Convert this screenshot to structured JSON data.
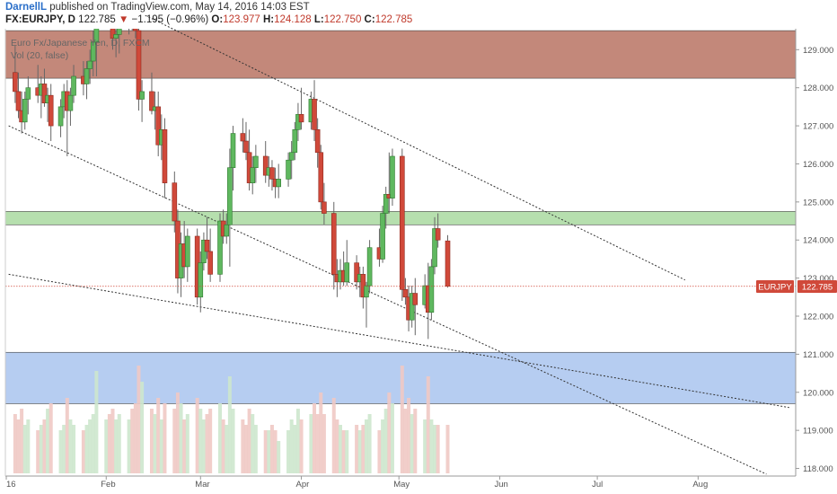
{
  "header": {
    "author": "DarnellL",
    "published_text": "published on TradingView.com, May 14, 2016 14:03 EST",
    "symbol": "FX:EURJPY, D",
    "last": "122.785",
    "change_arrow": "▼",
    "change": "−1.195 (−0.96%)",
    "o_label": "O:",
    "o_value": "123.977",
    "h_label": "H:",
    "h_value": "124.128",
    "l_label": "L:",
    "l_value": "122.750",
    "c_label": "C:",
    "c_value": "122.785"
  },
  "legend": {
    "title": "Euro Fx/Japanese Yen, D, FXCM",
    "indicator": "Vol (20, false)"
  },
  "price_tag": {
    "symbol": "EURJPY",
    "value": "122.785"
  },
  "colors": {
    "up": "#5fb85f",
    "down": "#d0493a",
    "resistance_zone": "#b87363",
    "support_mid_zone": "#a9d9a0",
    "support_zone": "#a9c4ee",
    "last_price_line": "#d0493a",
    "trendline": "#333333"
  },
  "chart_data": {
    "type": "candlestick",
    "y_axis_ticks": [
      "129.000",
      "128.000",
      "127.000",
      "126.000",
      "125.000",
      "124.000",
      "123.000",
      "122.000",
      "121.000",
      "120.000",
      "119.000",
      "118.000"
    ],
    "x_axis_ticks": [
      {
        "label": "16",
        "date": "2016-01-01"
      },
      {
        "label": "Feb",
        "date": "2016-02-01"
      },
      {
        "label": "Mar",
        "date": "2016-03-01"
      },
      {
        "label": "Apr",
        "date": "2016-04-01"
      },
      {
        "label": "May",
        "date": "2016-05-01"
      },
      {
        "label": "Jun",
        "date": "2016-06-01"
      },
      {
        "label": "Jul",
        "date": "2016-07-01"
      },
      {
        "label": "Aug",
        "date": "2016-08-01"
      }
    ],
    "ylim": [
      117.8,
      129.55
    ],
    "xlim": [
      "2016-01-01",
      "2016-08-31"
    ],
    "last_price": 122.785,
    "zones": [
      {
        "from": 128.25,
        "to": 129.5,
        "color": "resistance_zone"
      },
      {
        "from": 124.4,
        "to": 124.75,
        "color": "support_mid_zone"
      },
      {
        "from": 119.7,
        "to": 121.05,
        "color": "support_zone"
      }
    ],
    "trendlines": [
      {
        "from": [
          "2016-01-02",
          127.0
        ],
        "to": [
          "2016-08-22",
          117.85
        ]
      },
      {
        "from": [
          "2016-01-02",
          123.1
        ],
        "to": [
          "2016-08-29",
          119.6
        ]
      },
      {
        "from": [
          "2016-02-13",
          129.9
        ],
        "to": [
          "2016-07-28",
          122.95
        ]
      }
    ],
    "volume_ylim": [
      0,
      1
    ],
    "candles": [
      [
        "2016-01-04",
        128.4,
        129.1,
        127.6,
        127.9,
        0.55
      ],
      [
        "2016-01-05",
        127.9,
        128.4,
        127.2,
        127.4,
        0.5
      ],
      [
        "2016-01-06",
        127.4,
        127.9,
        126.8,
        127.1,
        0.6
      ],
      [
        "2016-01-07",
        127.1,
        127.9,
        126.9,
        127.7,
        0.45
      ],
      [
        "2016-01-08",
        127.7,
        128.3,
        127.3,
        128.0,
        0.5
      ],
      [
        "2016-01-11",
        128.0,
        128.6,
        127.6,
        127.8,
        0.4
      ],
      [
        "2016-01-12",
        127.8,
        128.3,
        127.2,
        128.1,
        0.45
      ],
      [
        "2016-01-13",
        128.1,
        128.5,
        127.5,
        127.6,
        0.5
      ],
      [
        "2016-01-14",
        127.6,
        128.0,
        127.1,
        127.8,
        0.6
      ],
      [
        "2016-01-15",
        127.8,
        128.1,
        126.6,
        127.0,
        0.65
      ],
      [
        "2016-01-18",
        127.0,
        127.7,
        126.7,
        127.5,
        0.4
      ],
      [
        "2016-01-19",
        127.5,
        128.1,
        127.2,
        127.9,
        0.45
      ],
      [
        "2016-01-20",
        127.9,
        128.2,
        126.2,
        127.4,
        0.7
      ],
      [
        "2016-01-21",
        127.4,
        128.0,
        127.0,
        127.8,
        0.5
      ],
      [
        "2016-01-22",
        127.8,
        128.6,
        127.6,
        128.3,
        0.45
      ],
      [
        "2016-01-25",
        128.3,
        128.7,
        127.8,
        128.1,
        0.4
      ],
      [
        "2016-01-26",
        128.1,
        128.7,
        127.7,
        128.5,
        0.45
      ],
      [
        "2016-01-27",
        128.5,
        129.0,
        128.1,
        128.7,
        0.5
      ],
      [
        "2016-01-28",
        128.7,
        129.5,
        128.3,
        129.2,
        0.55
      ],
      [
        "2016-01-29",
        129.2,
        130.4,
        128.3,
        130.2,
        0.95
      ],
      [
        "2016-02-01",
        130.2,
        131.0,
        129.8,
        130.6,
        0.5
      ],
      [
        "2016-02-02",
        130.6,
        131.0,
        129.9,
        130.3,
        0.55
      ],
      [
        "2016-02-03",
        130.3,
        130.5,
        129.0,
        129.3,
        0.6
      ],
      [
        "2016-02-04",
        129.3,
        129.7,
        128.8,
        129.4,
        0.5
      ],
      [
        "2016-02-05",
        129.4,
        130.0,
        128.9,
        129.7,
        0.55
      ],
      [
        "2016-02-08",
        129.7,
        130.3,
        129.4,
        130.0,
        0.5
      ],
      [
        "2016-02-09",
        130.0,
        130.3,
        129.5,
        129.8,
        0.6
      ],
      [
        "2016-02-10",
        129.8,
        130.1,
        129.3,
        129.5,
        0.65
      ],
      [
        "2016-02-11",
        129.5,
        129.6,
        127.4,
        127.7,
        1.0
      ],
      [
        "2016-02-12",
        127.7,
        128.2,
        127.1,
        127.9,
        0.85
      ],
      [
        "2016-02-15",
        127.9,
        128.4,
        127.3,
        127.4,
        0.6
      ],
      [
        "2016-02-16",
        127.4,
        127.9,
        126.9,
        127.5,
        0.55
      ],
      [
        "2016-02-17",
        127.5,
        127.9,
        126.2,
        126.5,
        0.7
      ],
      [
        "2016-02-18",
        126.5,
        127.3,
        126.1,
        126.9,
        0.5
      ],
      [
        "2016-02-19",
        126.9,
        127.2,
        125.1,
        125.5,
        0.65
      ],
      [
        "2016-02-22",
        125.5,
        125.8,
        124.2,
        124.5,
        0.6
      ],
      [
        "2016-02-23",
        124.5,
        124.8,
        122.6,
        123.0,
        0.75
      ],
      [
        "2016-02-24",
        123.0,
        124.2,
        122.5,
        123.9,
        0.65
      ],
      [
        "2016-02-25",
        123.9,
        124.5,
        123.0,
        123.3,
        0.5
      ],
      [
        "2016-02-26",
        123.3,
        124.3,
        122.9,
        124.1,
        0.55
      ],
      [
        "2016-02-29",
        124.1,
        124.3,
        122.3,
        122.5,
        0.7
      ],
      [
        "2016-03-01",
        122.5,
        123.7,
        122.1,
        123.4,
        0.6
      ],
      [
        "2016-03-02",
        123.4,
        124.2,
        123.2,
        124.0,
        0.5
      ],
      [
        "2016-03-03",
        124.0,
        124.6,
        123.5,
        123.7,
        0.55
      ],
      [
        "2016-03-04",
        123.7,
        124.3,
        122.9,
        123.1,
        0.6
      ],
      [
        "2016-03-07",
        123.1,
        124.7,
        122.9,
        124.5,
        0.65
      ],
      [
        "2016-03-08",
        124.5,
        124.8,
        123.9,
        124.1,
        0.5
      ],
      [
        "2016-03-09",
        124.1,
        124.7,
        123.9,
        124.4,
        0.45
      ],
      [
        "2016-03-10",
        124.4,
        126.4,
        123.3,
        125.9,
        0.9
      ],
      [
        "2016-03-11",
        125.9,
        127.0,
        125.3,
        126.8,
        0.6
      ],
      [
        "2016-03-14",
        126.8,
        127.2,
        126.3,
        126.6,
        0.5
      ],
      [
        "2016-03-15",
        126.6,
        127.1,
        126.1,
        126.3,
        0.45
      ],
      [
        "2016-03-16",
        126.3,
        126.9,
        125.3,
        125.5,
        0.6
      ],
      [
        "2016-03-17",
        125.5,
        126.2,
        125.2,
        125.9,
        0.55
      ],
      [
        "2016-03-18",
        125.9,
        126.5,
        125.5,
        126.2,
        0.45
      ],
      [
        "2016-03-21",
        126.2,
        126.6,
        125.5,
        125.7,
        0.4
      ],
      [
        "2016-03-22",
        125.7,
        126.2,
        125.4,
        125.9,
        0.4
      ],
      [
        "2016-03-23",
        125.9,
        126.1,
        125.3,
        125.6,
        0.45
      ],
      [
        "2016-03-24",
        125.6,
        125.9,
        125.1,
        125.4,
        0.4
      ],
      [
        "2016-03-25",
        125.4,
        126.0,
        125.1,
        125.6,
        0.3
      ],
      [
        "2016-03-28",
        125.6,
        126.3,
        125.4,
        126.1,
        0.4
      ],
      [
        "2016-03-29",
        126.1,
        126.6,
        125.6,
        126.3,
        0.5
      ],
      [
        "2016-03-30",
        126.3,
        127.1,
        126.1,
        126.9,
        0.45
      ],
      [
        "2016-03-31",
        126.9,
        127.6,
        126.6,
        127.3,
        0.6
      ],
      [
        "2016-04-01",
        127.3,
        128.0,
        126.9,
        127.1,
        0.5
      ],
      [
        "2016-04-04",
        127.1,
        127.9,
        126.9,
        127.7,
        0.55
      ],
      [
        "2016-04-05",
        127.7,
        128.2,
        126.6,
        126.9,
        0.65
      ],
      [
        "2016-04-06",
        126.9,
        127.2,
        125.9,
        126.3,
        0.55
      ],
      [
        "2016-04-07",
        126.3,
        126.5,
        124.8,
        125.0,
        0.75
      ],
      [
        "2016-04-08",
        125.0,
        125.5,
        124.4,
        124.7,
        0.55
      ],
      [
        "2016-04-11",
        124.7,
        125.0,
        122.7,
        123.1,
        0.7
      ],
      [
        "2016-04-12",
        123.1,
        123.5,
        122.5,
        122.9,
        0.5
      ],
      [
        "2016-04-13",
        122.9,
        123.5,
        122.7,
        123.2,
        0.45
      ],
      [
        "2016-04-14",
        123.2,
        123.7,
        122.8,
        122.9,
        0.4
      ],
      [
        "2016-04-15",
        122.9,
        124.0,
        122.8,
        123.4,
        0.4
      ],
      [
        "2016-04-18",
        123.4,
        123.6,
        122.7,
        122.9,
        0.45
      ],
      [
        "2016-04-19",
        122.9,
        123.3,
        122.5,
        123.1,
        0.4
      ],
      [
        "2016-04-20",
        123.1,
        123.3,
        122.2,
        122.5,
        0.45
      ],
      [
        "2016-04-21",
        122.5,
        122.9,
        121.7,
        122.8,
        0.5
      ],
      [
        "2016-04-22",
        122.8,
        124.0,
        122.6,
        123.8,
        0.55
      ],
      [
        "2016-04-25",
        123.8,
        124.3,
        123.3,
        123.5,
        0.4
      ],
      [
        "2016-04-26",
        123.5,
        124.9,
        123.4,
        124.7,
        0.5
      ],
      [
        "2016-04-27",
        124.7,
        125.4,
        124.3,
        125.2,
        0.6
      ],
      [
        "2016-04-28",
        125.2,
        126.3,
        124.7,
        125.1,
        0.75
      ],
      [
        "2016-04-29",
        125.1,
        126.4,
        124.9,
        126.2,
        0.65
      ],
      [
        "2016-05-02",
        126.2,
        126.4,
        122.4,
        122.7,
        1.0
      ],
      [
        "2016-05-03",
        122.7,
        123.0,
        122.3,
        122.5,
        0.6
      ],
      [
        "2016-05-04",
        122.5,
        122.8,
        121.6,
        121.9,
        0.7
      ],
      [
        "2016-05-05",
        121.9,
        122.8,
        121.7,
        122.6,
        0.55
      ],
      [
        "2016-05-06",
        122.6,
        123.0,
        121.5,
        122.3,
        0.6
      ],
      [
        "2016-05-09",
        122.3,
        123.1,
        122.2,
        122.8,
        0.5
      ],
      [
        "2016-05-10",
        122.8,
        123.4,
        121.4,
        122.1,
        0.9
      ],
      [
        "2016-05-11",
        122.1,
        123.5,
        121.9,
        123.3,
        0.5
      ],
      [
        "2016-05-12",
        123.3,
        124.6,
        123.1,
        124.3,
        0.45
      ],
      [
        "2016-05-13",
        124.3,
        124.7,
        123.8,
        124.0,
        0.45
      ],
      [
        "2016-05-16",
        123.977,
        124.128,
        122.75,
        122.785,
        0.45
      ]
    ]
  }
}
